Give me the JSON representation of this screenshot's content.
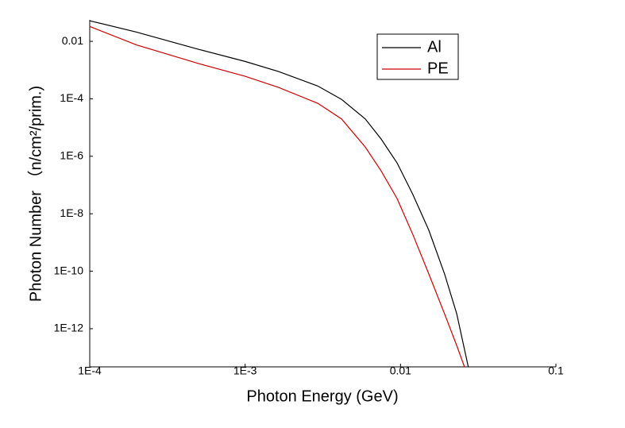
{
  "chart_data": {
    "type": "line",
    "xlabel": "Photon Energy (GeV)",
    "ylabel": "Photon Number （n/cm²/prim.)",
    "x": [
      0.0001,
      0.0002,
      0.0005,
      0.001,
      0.00164,
      0.00293,
      0.00417,
      0.00593,
      0.0075,
      0.0095,
      0.012,
      0.0152,
      0.0192,
      0.023,
      0.0258,
      0.0273
    ],
    "series": [
      {
        "name": "Al",
        "color": "#000000",
        "values": [
          0.052,
          0.021,
          0.0053,
          0.002,
          0.00089,
          0.00028,
          9.6e-05,
          2e-05,
          4e-06,
          5.9e-07,
          4.7e-08,
          2.7e-09,
          8.1e-11,
          3.3e-12,
          1.9e-13,
          4.7e-14
        ]
      },
      {
        "name": "PE",
        "color": "#cc0000",
        "values": [
          0.033,
          0.0075,
          0.0017,
          0.00061,
          0.00025,
          7e-05,
          2e-05,
          2.1e-06,
          3.1e-07,
          3.4e-08,
          1.9e-09,
          8.1e-11,
          3.3e-12,
          2.6e-13,
          4.7e-14,
          null
        ]
      }
    ],
    "xlog": true,
    "ylog": true,
    "xlim": [
      0.0001,
      0.1
    ],
    "xticks": [
      {
        "value": 0.0001,
        "label": "1E-4"
      },
      {
        "value": 0.001,
        "label": "1E-3"
      },
      0.01,
      0.1
    ],
    "ylim": [
      4.7e-14,
      0.056
    ],
    "yticks": [
      0.01,
      {
        "value": 0.0001,
        "label": "1E-4"
      },
      {
        "value": 1e-06,
        "label": "1E-6"
      },
      {
        "value": 1e-08,
        "label": "1E-8"
      },
      {
        "value": 1e-10,
        "label": "1E-10"
      },
      {
        "value": 1e-12,
        "label": "1E-12"
      }
    ],
    "grid": false,
    "legend": "upper right"
  }
}
